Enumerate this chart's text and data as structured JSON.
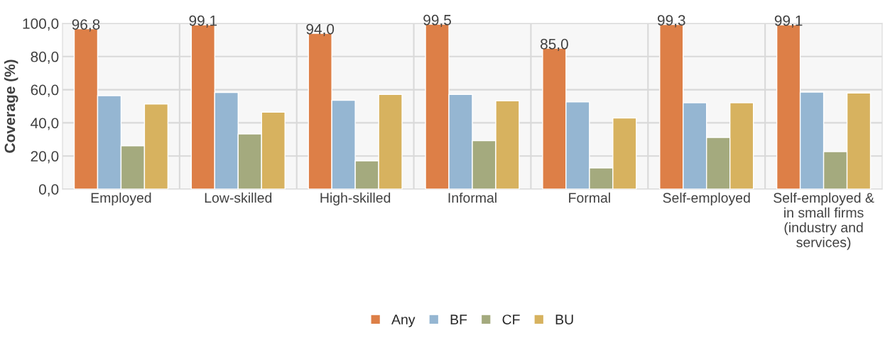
{
  "chart_data": {
    "type": "bar",
    "ylabel": "Coverage (%)",
    "categories": [
      "Employed",
      "Low-skilled",
      "High-skilled",
      "Informal",
      "Formal",
      "Self-employed",
      "Self-employed &\nin small firms\n(industry and\nservices)"
    ],
    "series": [
      {
        "name": "Any",
        "color": "#dd7f47",
        "values": [
          96.8,
          99.1,
          94.0,
          99.5,
          85.0,
          99.3,
          99.1
        ],
        "value_labels": [
          "96,8",
          "99,1",
          "94,0",
          "99,5",
          "85,0",
          "99,3",
          "99,1"
        ]
      },
      {
        "name": "BF",
        "color": "#95b6d2",
        "values": [
          56.4,
          58.3,
          53.6,
          57.1,
          52.6,
          52.1,
          58.5
        ]
      },
      {
        "name": "CF",
        "color": "#a4aa7e",
        "values": [
          26.2,
          33.3,
          17.1,
          29.2,
          12.8,
          31.2,
          22.6
        ]
      },
      {
        "name": "BU",
        "color": "#d7b25f",
        "values": [
          51.4,
          46.4,
          57.1,
          53.3,
          42.9,
          52.1,
          58.0
        ]
      }
    ],
    "ylim": [
      0,
      100
    ],
    "yticks": [
      {
        "value": 0,
        "label": "0,0"
      },
      {
        "value": 20,
        "label": "20,0"
      },
      {
        "value": 40,
        "label": "40,0"
      },
      {
        "value": 60,
        "label": "60,0"
      },
      {
        "value": 80,
        "label": "80,0"
      },
      {
        "value": 100,
        "label": "100,0"
      }
    ],
    "grid": true,
    "legend": "bottom"
  }
}
